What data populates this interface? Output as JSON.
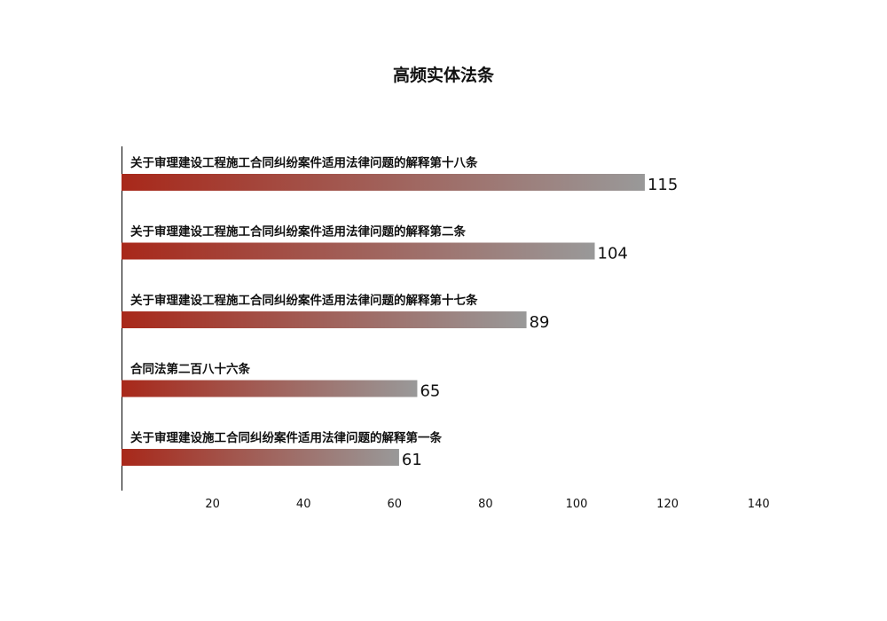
{
  "chart_data": {
    "type": "bar",
    "orientation": "horizontal",
    "title": "高频实体法条",
    "xlabel": "",
    "ylabel": "",
    "xlim": [
      0,
      140
    ],
    "xticks": [
      20,
      40,
      60,
      80,
      100,
      120,
      140
    ],
    "grid": false,
    "categories": [
      "关于审理建设工程施工合同纠纷案件适用法律问题的解释第十八条",
      "关于审理建设工程施工合同纠纷案件适用法律问题的解释第二条",
      "关于审理建设工程施工合同纠纷案件适用法律问题的解释第十七条",
      "合同法第二百八十六条",
      "关于审理建设施工合同纠纷案件适用法律问题的解释第一条"
    ],
    "values": [
      115,
      104,
      89,
      65,
      61
    ],
    "colors": {
      "gradient_start": "#a8281a",
      "gradient_end": "#999999"
    }
  }
}
